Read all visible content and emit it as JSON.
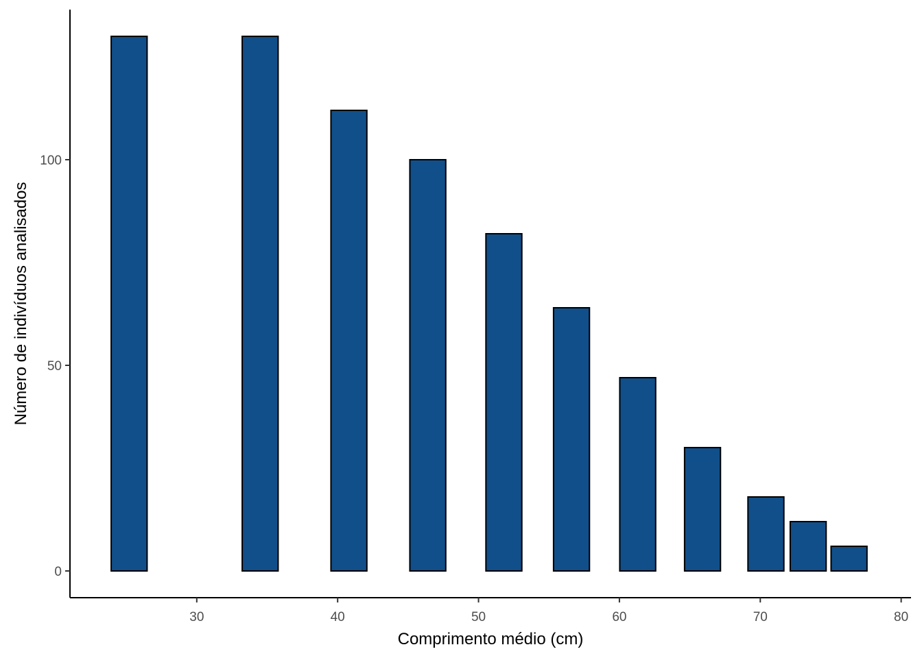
{
  "chart_data": {
    "type": "bar",
    "title": "",
    "xlabel": "Comprimento médio (cm)",
    "ylabel": "Número de indivíduos analisados",
    "x": [
      25.2,
      34.5,
      40.8,
      46.4,
      51.8,
      56.6,
      61.3,
      65.9,
      70.4,
      73.4,
      76.3
    ],
    "values": [
      130,
      130,
      112,
      100,
      82,
      64,
      47,
      30,
      18,
      12,
      6
    ],
    "bar_widths": [
      2.55,
      2.55,
      2.55,
      2.55,
      2.55,
      2.55,
      2.55,
      2.55,
      2.55,
      2.55,
      2.55
    ],
    "xlim": [
      21,
      80.7
    ],
    "ylim": [
      -6.5,
      136.5
    ],
    "xticks": [
      30,
      40,
      50,
      60,
      70,
      80
    ],
    "yticks": [
      0,
      50,
      100
    ],
    "grid": false,
    "colors": {
      "bar_fill": "#114f8a",
      "bar_stroke": "#000000",
      "axis": "#000000",
      "tick_text": "#4d4d4d"
    }
  }
}
